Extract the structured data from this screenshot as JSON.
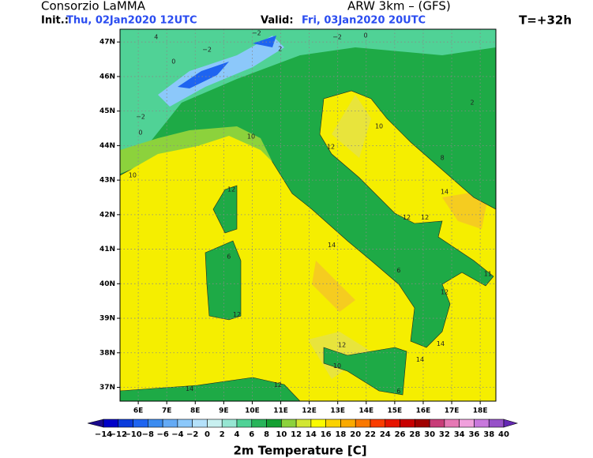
{
  "header": {
    "org": "Consorzio LaMMA",
    "init_label": "Init.:",
    "init_time": "Thu, 02Jan2020 12UTC",
    "model": "ARW 3km – (GFS)",
    "valid_label": "Valid:",
    "valid_time": "Fri, 03Jan2020 20UTC",
    "lead": "T=+32h"
  },
  "map": {
    "lonlim": [
      5.36,
      18.55
    ],
    "latlim": [
      36.6,
      47.37
    ],
    "grid": true,
    "lonticks": [
      {
        "value": 6,
        "label": "6E"
      },
      {
        "value": 7,
        "label": "7E"
      },
      {
        "value": 8,
        "label": "8E"
      },
      {
        "value": 9,
        "label": "9E"
      },
      {
        "value": 10,
        "label": "10E"
      },
      {
        "value": 11,
        "label": "11E"
      },
      {
        "value": 12,
        "label": "12E"
      },
      {
        "value": 13,
        "label": "13E"
      },
      {
        "value": 14,
        "label": "14E"
      },
      {
        "value": 15,
        "label": "15E"
      },
      {
        "value": 16,
        "label": "16E"
      },
      {
        "value": 17,
        "label": "17E"
      },
      {
        "value": 18,
        "label": "18E"
      }
    ],
    "latticks": [
      {
        "value": 37,
        "label": "37N"
      },
      {
        "value": 38,
        "label": "38N"
      },
      {
        "value": 39,
        "label": "39N"
      },
      {
        "value": 40,
        "label": "40N"
      },
      {
        "value": 41,
        "label": "41N"
      },
      {
        "value": 42,
        "label": "42N"
      },
      {
        "value": 43,
        "label": "43N"
      },
      {
        "value": 44,
        "label": "44N"
      },
      {
        "value": 45,
        "label": "45N"
      },
      {
        "value": 46,
        "label": "46N"
      },
      {
        "value": 47,
        "label": "47N"
      }
    ],
    "contour_labels": [
      {
        "lon": 6.63,
        "lat": 47.14,
        "value": 4
      },
      {
        "lon": 7.24,
        "lat": 46.43,
        "value": 0
      },
      {
        "lon": 8.41,
        "lat": 46.78,
        "value": -2
      },
      {
        "lon": 10.15,
        "lat": 47.26,
        "value": -2
      },
      {
        "lon": 10.98,
        "lat": 46.8,
        "value": 2
      },
      {
        "lon": 12.98,
        "lat": 47.14,
        "value": -2
      },
      {
        "lon": 13.98,
        "lat": 47.19,
        "value": 0
      },
      {
        "lon": 6.08,
        "lat": 44.83,
        "value": -2
      },
      {
        "lon": 6.08,
        "lat": 44.37,
        "value": 0
      },
      {
        "lon": 9.96,
        "lat": 44.26,
        "value": 10
      },
      {
        "lon": 12.76,
        "lat": 43.96,
        "value": 12
      },
      {
        "lon": 5.8,
        "lat": 43.14,
        "value": 10
      },
      {
        "lon": 9.27,
        "lat": 42.73,
        "value": 12
      },
      {
        "lon": 16.75,
        "lat": 42.66,
        "value": 14
      },
      {
        "lon": 15.42,
        "lat": 41.92,
        "value": 12
      },
      {
        "lon": 16.06,
        "lat": 41.92,
        "value": 12
      },
      {
        "lon": 12.79,
        "lat": 41.12,
        "value": 14
      },
      {
        "lon": 15.14,
        "lat": 40.39,
        "value": 6
      },
      {
        "lon": 16.75,
        "lat": 39.75,
        "value": 12
      },
      {
        "lon": 9.46,
        "lat": 39.1,
        "value": 12
      },
      {
        "lon": 13.15,
        "lat": 38.22,
        "value": 12
      },
      {
        "lon": 12.98,
        "lat": 37.62,
        "value": 10
      },
      {
        "lon": 15.89,
        "lat": 37.8,
        "value": 14
      },
      {
        "lon": 10.9,
        "lat": 37.07,
        "value": 12
      },
      {
        "lon": 7.8,
        "lat": 36.96,
        "value": 14
      },
      {
        "lon": 16.61,
        "lat": 38.26,
        "value": 14
      },
      {
        "lon": 18.27,
        "lat": 40.28,
        "value": 11
      },
      {
        "lon": 17.72,
        "lat": 45.24,
        "value": 2
      },
      {
        "lon": 14.45,
        "lat": 44.56,
        "value": 10
      },
      {
        "lon": 16.67,
        "lat": 43.64,
        "value": 8
      },
      {
        "lon": 9.18,
        "lat": 40.78,
        "value": 6
      },
      {
        "lon": 15.14,
        "lat": 36.89,
        "value": 6
      }
    ]
  },
  "colorbar": {
    "title": "2m Temperature [C]",
    "levels": [
      -14,
      -12,
      -10,
      -8,
      -6,
      -4,
      -2,
      0,
      2,
      4,
      6,
      8,
      10,
      12,
      14,
      16,
      18,
      20,
      22,
      24,
      26,
      28,
      30,
      32,
      34,
      36,
      38,
      40
    ],
    "colors": [
      "#1a0a8c",
      "#0000c8",
      "#0a3cdc",
      "#1e64f0",
      "#3c8cf0",
      "#64aaf5",
      "#8cc8fa",
      "#b4e1fa",
      "#c8f0f0",
      "#96e6d2",
      "#50d296",
      "#28b45a",
      "#14a032",
      "#8cd23c",
      "#d2e632",
      "#fafa00",
      "#fad200",
      "#faaa00",
      "#fa7800",
      "#fa3c00",
      "#e61400",
      "#c80000",
      "#a00000",
      "#c83c78",
      "#e678b4",
      "#f0a0dc",
      "#c878dc",
      "#9650c8",
      "#6428b4"
    ]
  }
}
